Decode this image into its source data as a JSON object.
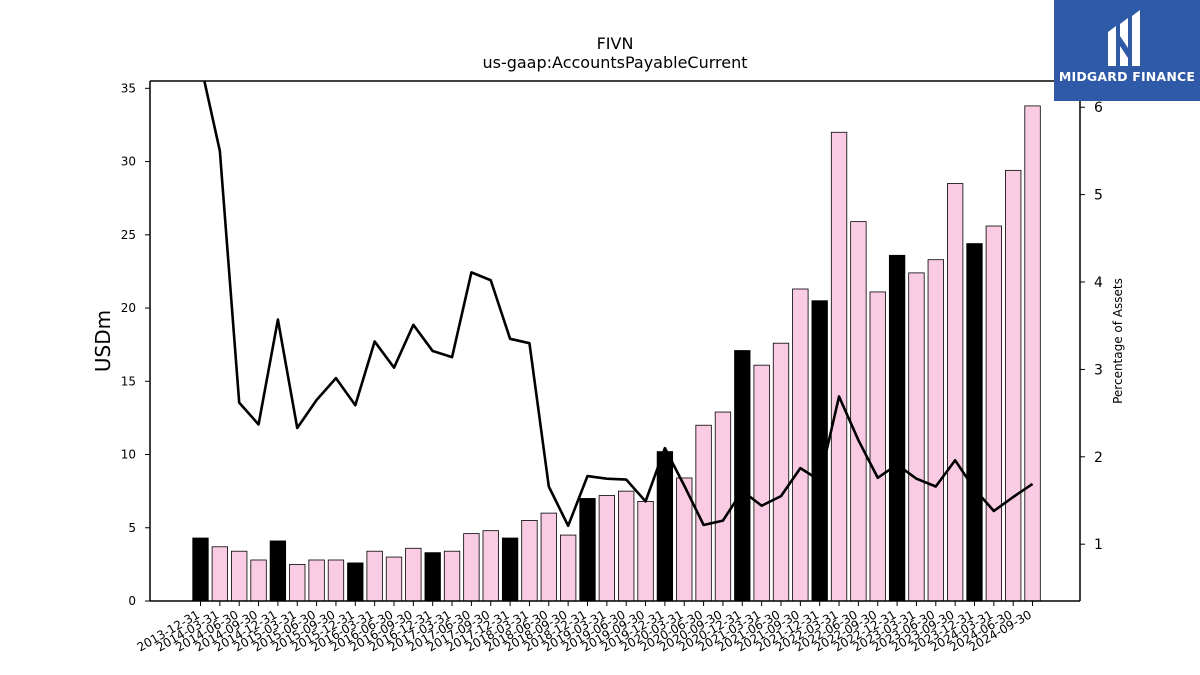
{
  "brand": {
    "name": "MIDGARD FINANCE",
    "background": "#2e5aa8",
    "icon": "midgard-logo-icon"
  },
  "chart_data": {
    "type": "bar",
    "title": "FIVN",
    "subtitle": "us-gaap:AccountsPayableCurrent",
    "ylabel": "USDm",
    "ylabel_right": "Percentage of Assets",
    "ylim": [
      0,
      35.5
    ],
    "ylim_right": [
      0.35,
      6.3
    ],
    "yticks": [
      0,
      5,
      10,
      15,
      20,
      25,
      30,
      35
    ],
    "yticks_right": [
      1,
      2,
      3,
      4,
      5,
      6
    ],
    "grid": false,
    "colors": {
      "q4_bar": "#000000",
      "other_bar": "#f9cce3",
      "bar_edge": "#000000",
      "line": "#000000"
    },
    "categories": [
      "2013-12-31",
      "2014-03-31",
      "2014-06-30",
      "2014-09-30",
      "2014-12-31",
      "2015-03-31",
      "2015-06-30",
      "2015-09-30",
      "2015-12-31",
      "2016-03-31",
      "2016-06-30",
      "2016-09-30",
      "2016-12-31",
      "2017-03-31",
      "2017-06-30",
      "2017-09-30",
      "2017-12-31",
      "2018-03-31",
      "2018-06-30",
      "2018-09-30",
      "2018-12-31",
      "2019-03-31",
      "2019-06-30",
      "2019-09-30",
      "2019-12-31",
      "2020-03-31",
      "2020-06-30",
      "2020-09-30",
      "2020-12-31",
      "2021-03-31",
      "2021-06-30",
      "2021-09-30",
      "2021-12-31",
      "2022-03-31",
      "2022-06-30",
      "2022-09-30",
      "2022-12-31",
      "2023-03-31",
      "2023-06-30",
      "2023-09-30",
      "2023-12-31",
      "2024-03-31",
      "2024-06-30",
      "2024-09-30"
    ],
    "series": [
      {
        "axis": "left",
        "kind": "bar",
        "values": [
          4.3,
          3.7,
          3.4,
          2.8,
          4.1,
          2.5,
          2.8,
          2.8,
          2.6,
          3.4,
          3.0,
          3.6,
          3.3,
          3.4,
          4.6,
          4.8,
          4.3,
          5.5,
          6.0,
          4.5,
          7.0,
          7.2,
          7.5,
          6.8,
          10.2,
          8.4,
          12.0,
          12.9,
          17.1,
          16.1,
          17.6,
          21.3,
          20.5,
          32.0,
          25.9,
          21.1,
          23.6,
          22.4,
          23.3,
          28.5,
          24.4,
          25.6,
          29.4,
          33.8
        ]
      },
      {
        "axis": "right",
        "kind": "line",
        "values": [
          6.5,
          5.5,
          2.62,
          2.37,
          3.57,
          2.33,
          2.65,
          2.9,
          2.59,
          3.32,
          3.02,
          3.51,
          3.21,
          3.14,
          4.11,
          4.02,
          3.35,
          3.3,
          1.66,
          1.21,
          1.78,
          1.75,
          1.74,
          1.49,
          2.1,
          1.67,
          1.22,
          1.27,
          1.61,
          1.44,
          1.55,
          1.87,
          1.73,
          2.69,
          2.19,
          1.76,
          1.91,
          1.75,
          1.66,
          1.96,
          1.63,
          1.38,
          1.54,
          1.69
        ]
      }
    ]
  }
}
